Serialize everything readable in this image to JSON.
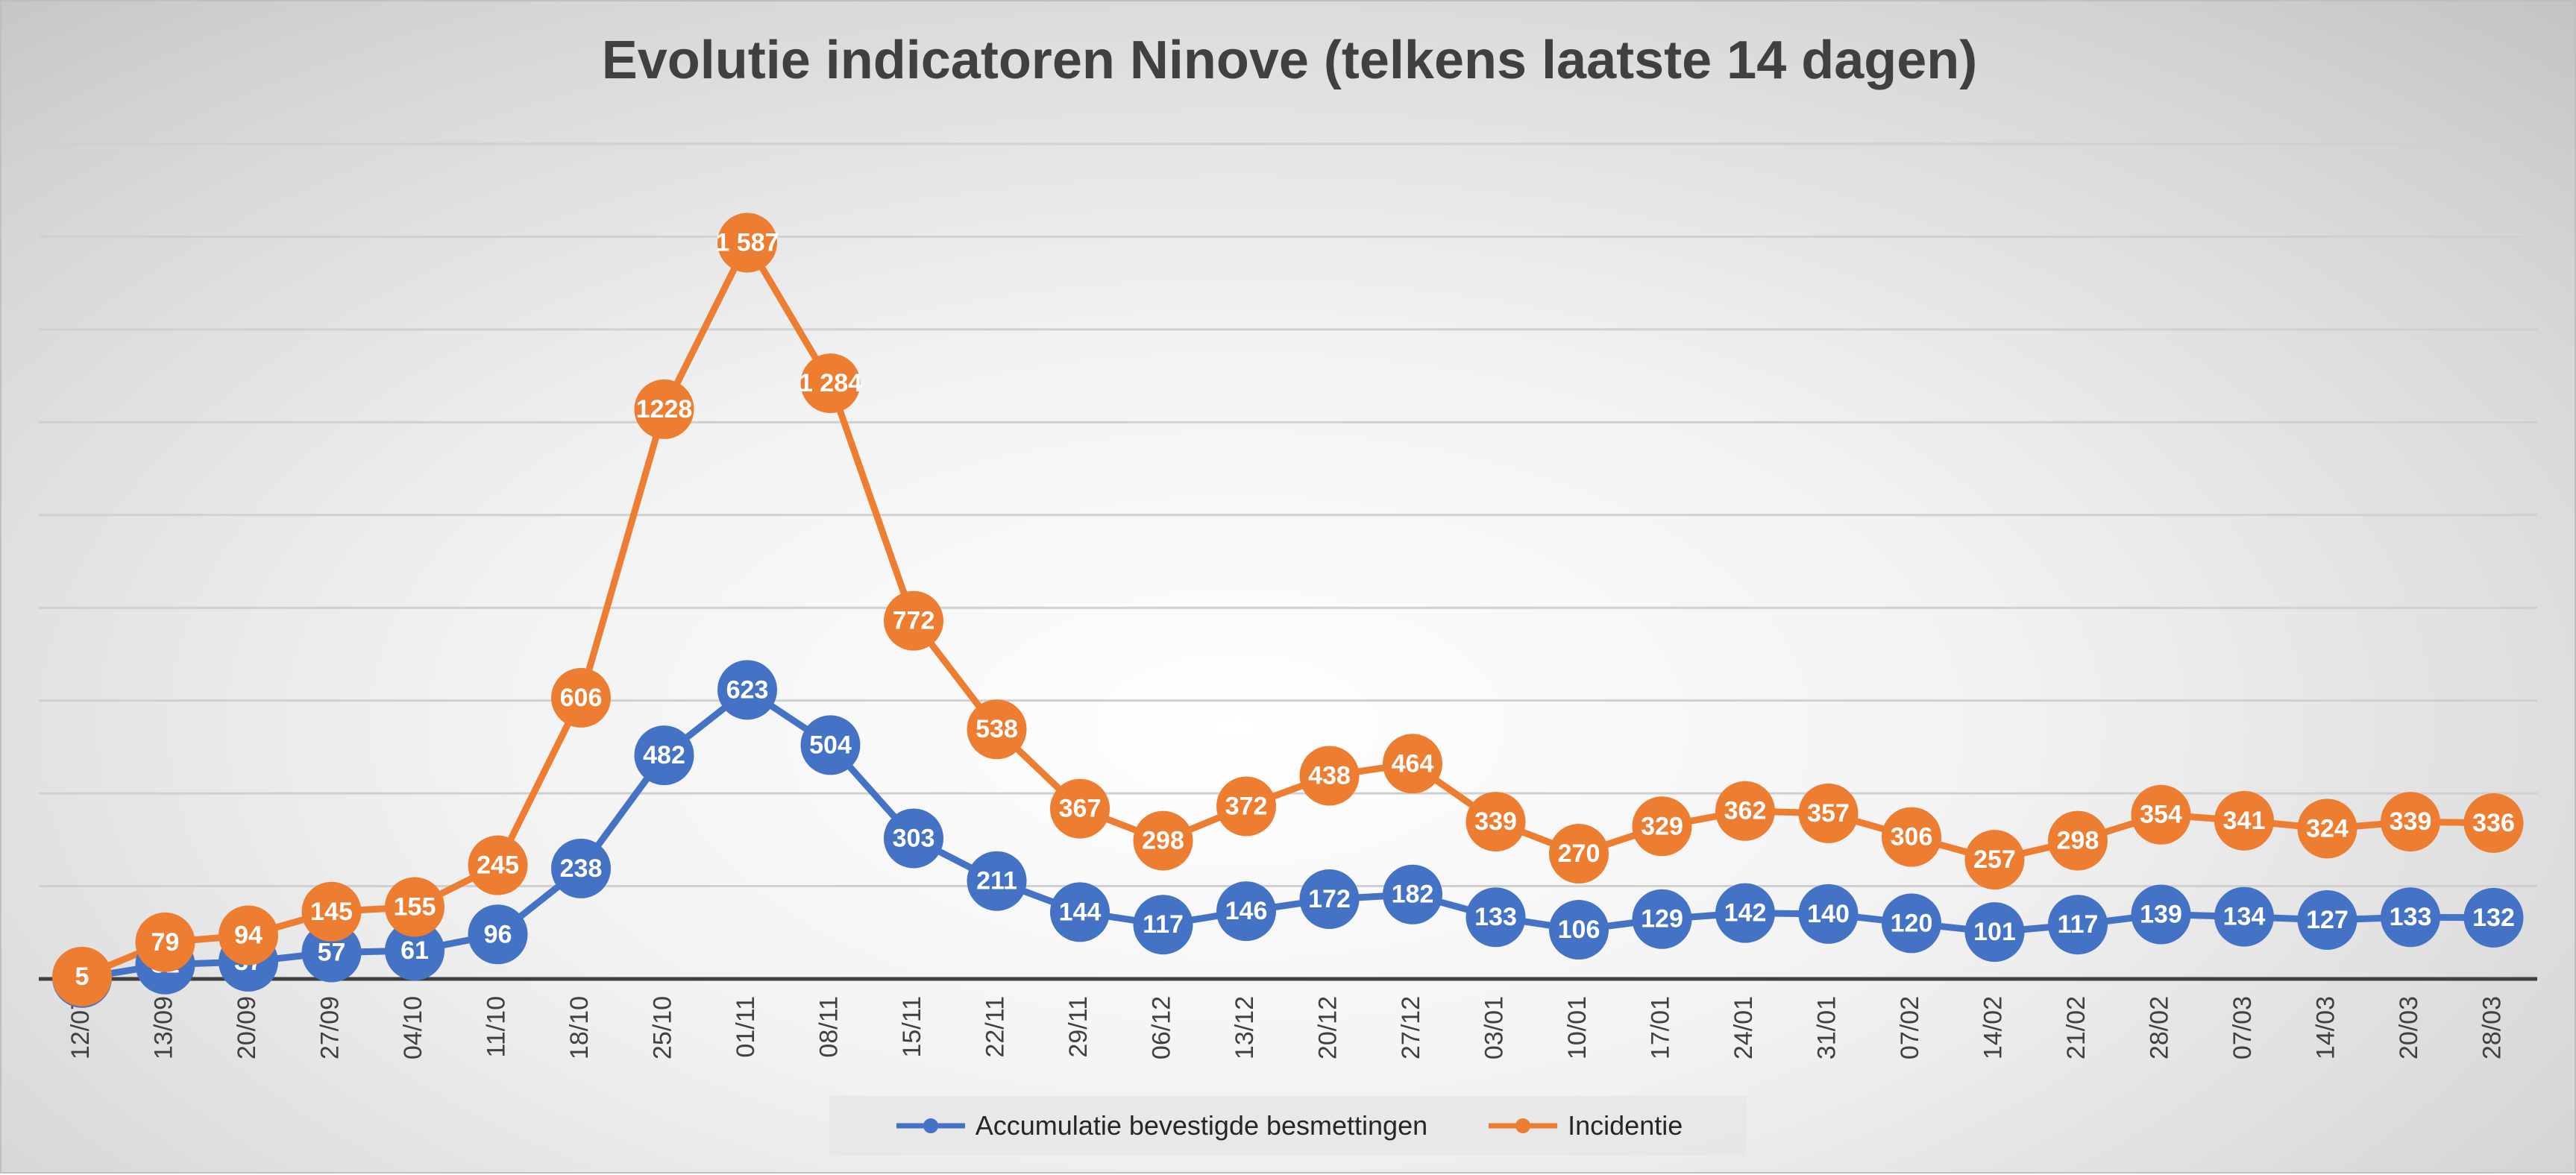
{
  "chart_data": {
    "type": "line",
    "title": "Evolutie indicatoren Ninove (telkens laatste 14 dagen)",
    "xlabel": "",
    "ylabel": "",
    "categories": [
      "12/07",
      "13/09",
      "20/09",
      "27/09",
      "04/10",
      "11/10",
      "18/10",
      "25/10",
      "01/11",
      "08/11",
      "15/11",
      "22/11",
      "29/11",
      "06/12",
      "13/12",
      "20/12",
      "27/12",
      "03/01",
      "10/01",
      "17/01",
      "24/01",
      "31/01",
      "07/02",
      "14/02",
      "21/02",
      "28/02",
      "07/03",
      "14/03",
      "20/03",
      "28/03"
    ],
    "value_labels_blue": [
      "2",
      "31",
      "37",
      "57",
      "61",
      "96",
      "238",
      "482",
      "623",
      "504",
      "303",
      "211",
      "144",
      "117",
      "146",
      "172",
      "182",
      "133",
      "106",
      "129",
      "142",
      "140",
      "120",
      "101",
      "117",
      "139",
      "134",
      "127",
      "133",
      "132"
    ],
    "value_labels_orange": [
      "5",
      "79",
      "94",
      "145",
      "155",
      "245",
      "606",
      "1228",
      "1 587",
      "1 284",
      "772",
      "538",
      "367",
      "298",
      "372",
      "438",
      "464",
      "339",
      "270",
      "329",
      "362",
      "357",
      "306",
      "257",
      "298",
      "354",
      "341",
      "324",
      "339",
      "336"
    ],
    "series": [
      {
        "name": "Accumulatie bevestigde besmettingen",
        "color": "#4472c4",
        "values": [
          2,
          31,
          37,
          57,
          61,
          96,
          238,
          482,
          623,
          504,
          303,
          211,
          144,
          117,
          146,
          172,
          182,
          133,
          106,
          129,
          142,
          140,
          120,
          101,
          117,
          139,
          134,
          127,
          133,
          132
        ]
      },
      {
        "name": "Incidentie",
        "color": "#ed7d31",
        "values": [
          5,
          79,
          94,
          145,
          155,
          245,
          606,
          1228,
          1587,
          1284,
          772,
          538,
          367,
          298,
          372,
          438,
          464,
          339,
          270,
          329,
          362,
          357,
          306,
          257,
          298,
          354,
          341,
          324,
          339,
          336
        ]
      }
    ],
    "ylim": [
      0,
      1800
    ],
    "gridlines": true,
    "y_tick_labels_shown": false,
    "legend_position": "bottom"
  }
}
